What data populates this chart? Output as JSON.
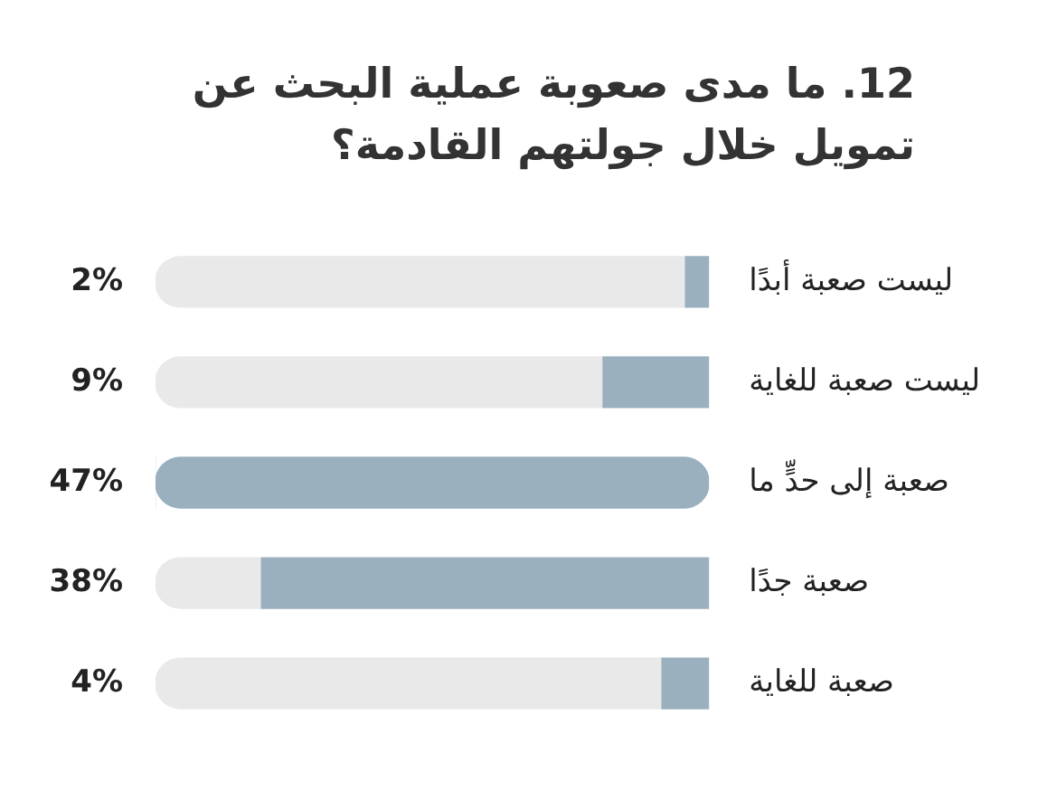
{
  "chart_data": {
    "type": "bar",
    "orientation": "horizontal",
    "stacked": true,
    "title": "12. ما مدى صعوبة عملية البحث عن تمويل خلال جولتهم القادمة؟",
    "categories": [
      "ليست صعبة أبدًا",
      "ليست صعبة للغاية",
      "صعبة إلى حدٍّ ما",
      "صعبة جدًا",
      "صعبة للغاية"
    ],
    "series": [
      {
        "color": "#9ab0bf",
        "values": [
          2,
          9,
          47,
          38,
          4
        ],
        "value_labels": [
          "2%",
          "9%",
          "47%",
          "38%",
          "4%"
        ]
      },
      {
        "color": "#e9e9e9",
        "values": [
          45,
          38,
          0,
          9,
          43
        ]
      }
    ],
    "grid": false,
    "legend": false
  }
}
